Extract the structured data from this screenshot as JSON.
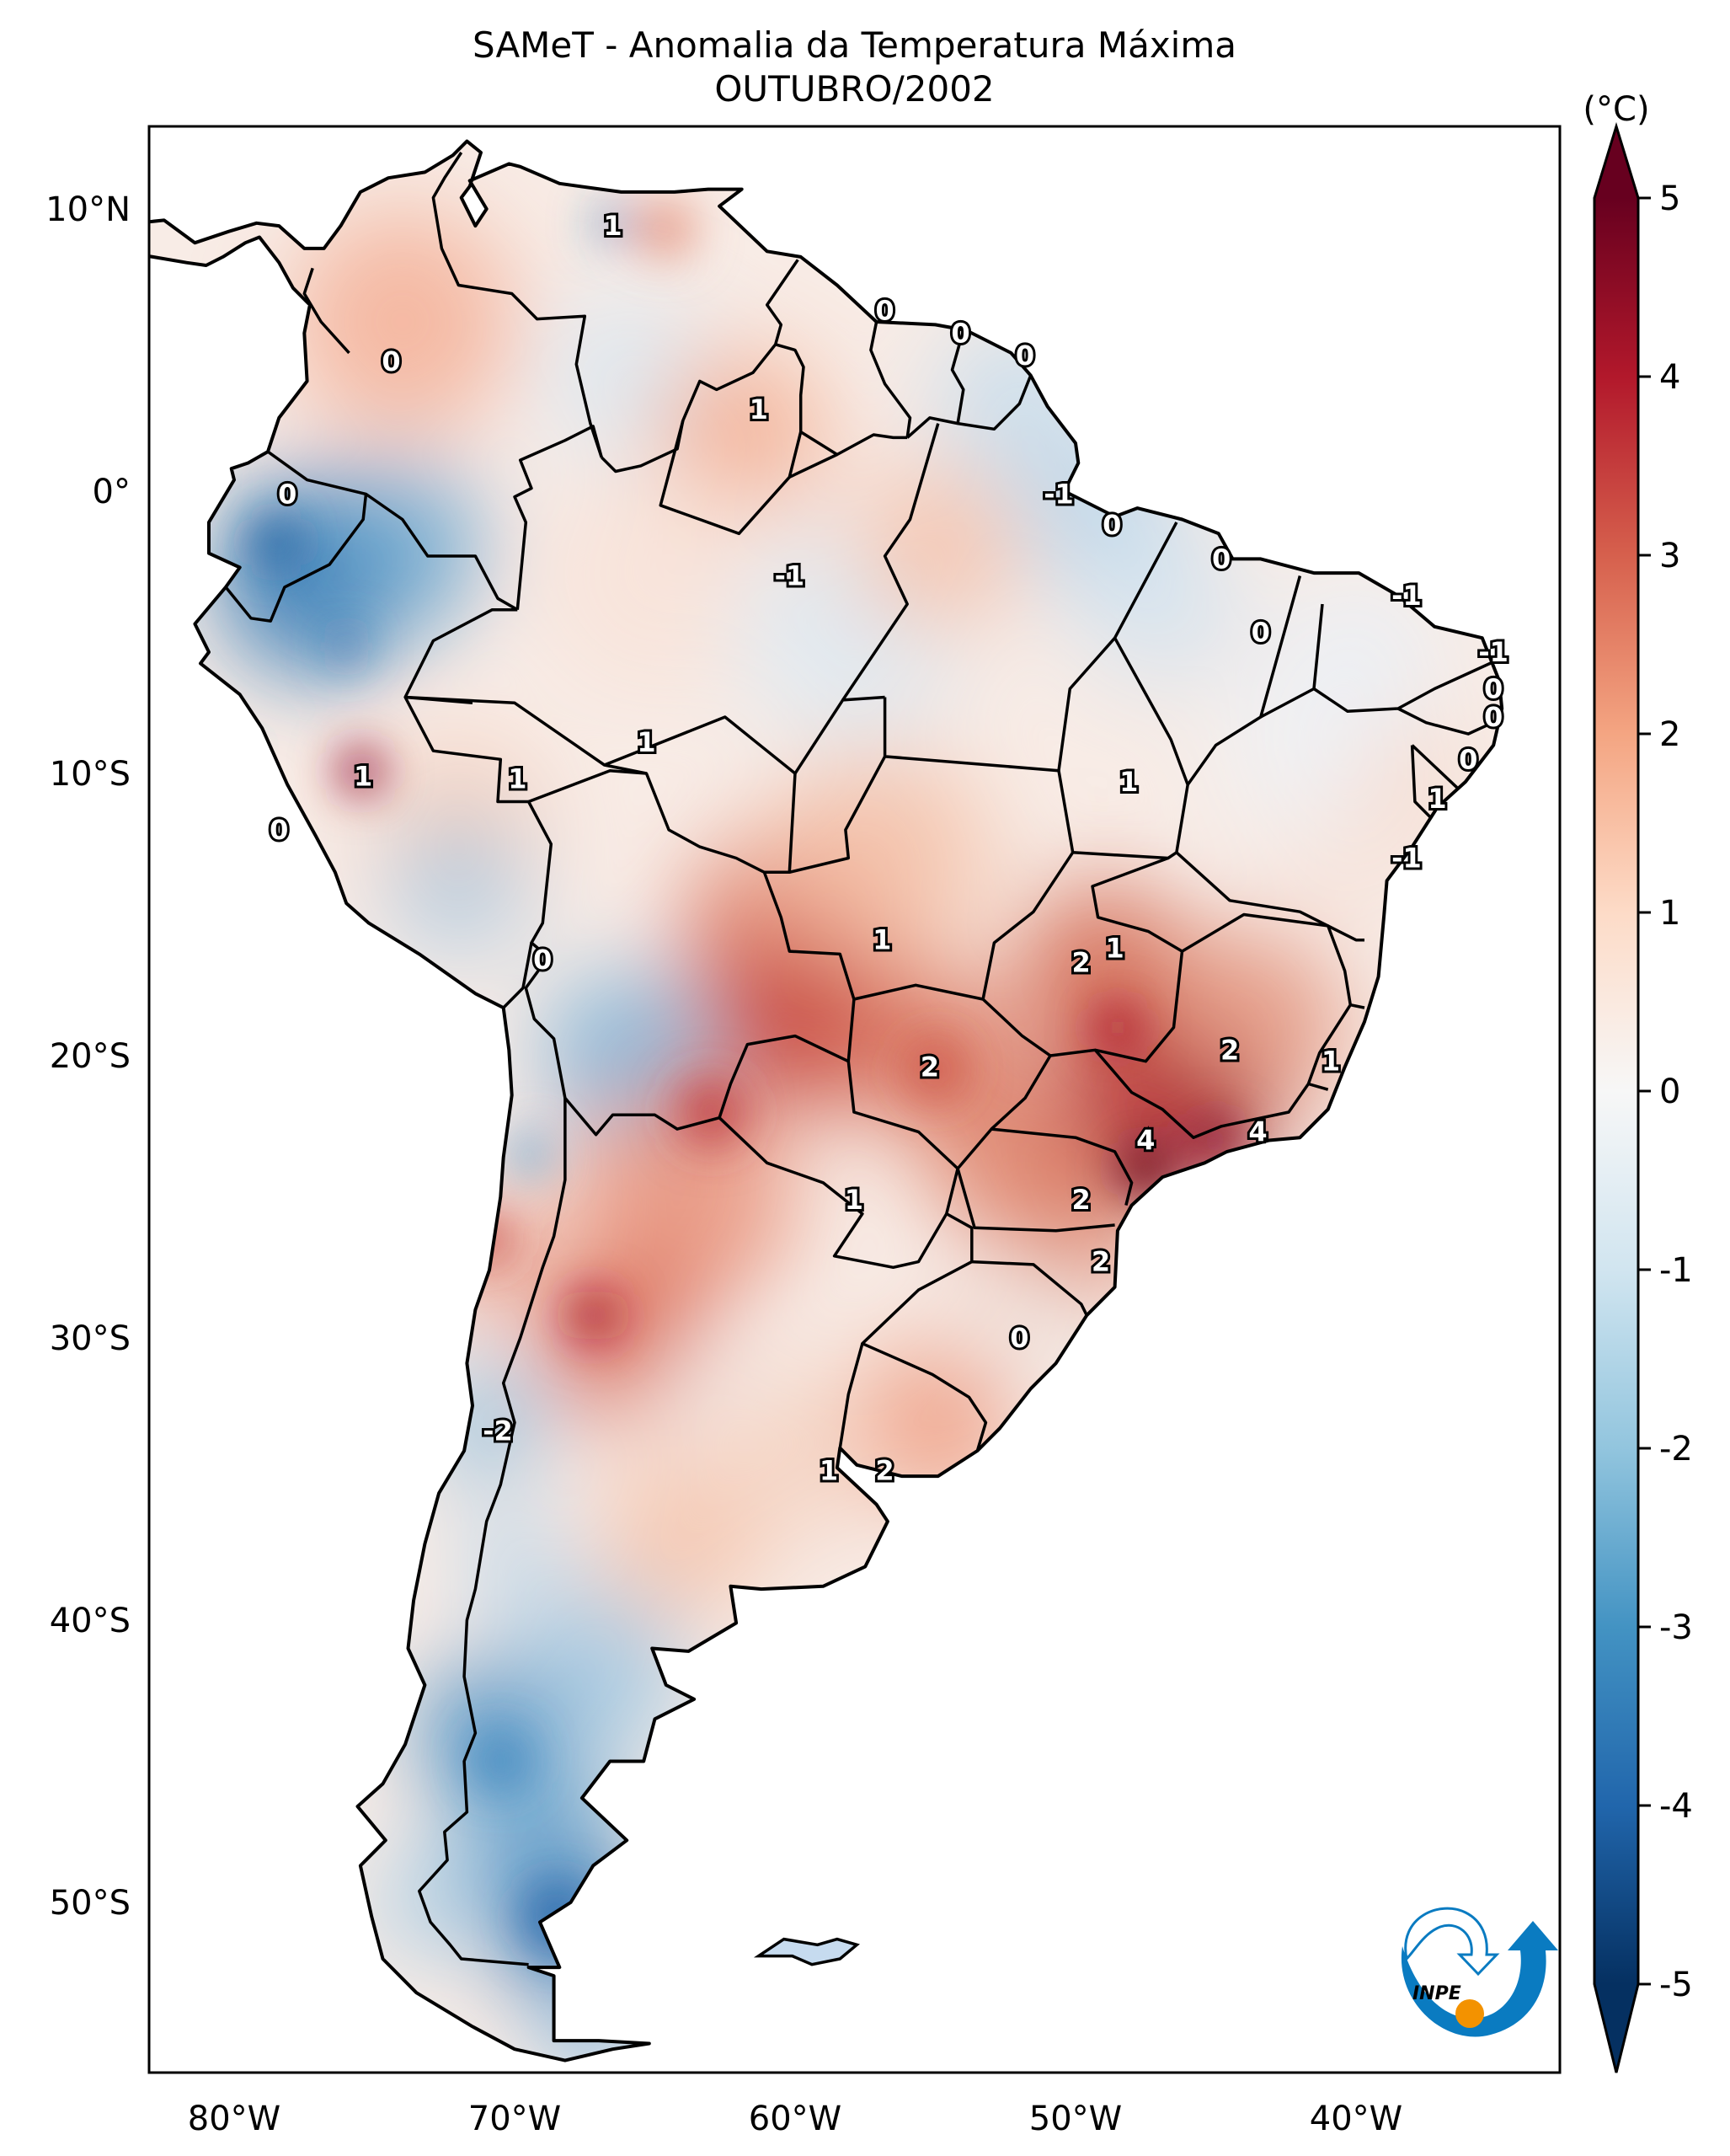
{
  "title": {
    "line1": "SAMeT - Anomalia da Temperatura Máxima",
    "line2": "OUTUBRO/2002"
  },
  "chart_data": {
    "type": "heatmap",
    "subtype": "geographic map (filled contour) of South America",
    "title": "SAMeT - Anomalia da Temperatura Máxima",
    "subtitle": "OUTUBRO/2002",
    "variable": "Maximum temperature anomaly",
    "units_label": "(°C)",
    "xlim": [
      -83,
      -32.7
    ],
    "ylim": [
      -56,
      12.9
    ],
    "x_ticks": [
      {
        "value": -80,
        "label": "80°W"
      },
      {
        "value": -70,
        "label": "70°W"
      },
      {
        "value": -60,
        "label": "60°W"
      },
      {
        "value": -50,
        "label": "50°W"
      },
      {
        "value": -40,
        "label": "40°W"
      }
    ],
    "y_ticks": [
      {
        "value": 10,
        "label": "10°N"
      },
      {
        "value": 0,
        "label": "0°"
      },
      {
        "value": -10,
        "label": "10°S"
      },
      {
        "value": -20,
        "label": "20°S"
      },
      {
        "value": -30,
        "label": "30°S"
      },
      {
        "value": -40,
        "label": "40°S"
      },
      {
        "value": -50,
        "label": "50°S"
      }
    ],
    "colorbar": {
      "label": "(°C)",
      "range": [
        -5,
        5
      ],
      "extend": "both",
      "ticks": [
        "5",
        "4",
        "3",
        "2",
        "1",
        "0",
        "-1",
        "-2",
        "-3",
        "-4",
        "-5"
      ],
      "colormap": "RdBu_r",
      "colors": [
        "#053061",
        "#2166ac",
        "#4393c3",
        "#92c5de",
        "#d1e5f0",
        "#f7f7f7",
        "#fddbc7",
        "#f4a582",
        "#d6604d",
        "#b2182b",
        "#67001f"
      ]
    },
    "contour_labels": [
      {
        "text": "1",
        "lon": -66.5,
        "lat": 9.4
      },
      {
        "text": "0",
        "lon": -74.4,
        "lat": 4.6
      },
      {
        "text": "0",
        "lon": -56.8,
        "lat": 6.4
      },
      {
        "text": "0",
        "lon": -54.1,
        "lat": 5.6
      },
      {
        "text": "0",
        "lon": -51.8,
        "lat": 4.8
      },
      {
        "text": "1",
        "lon": -61.3,
        "lat": 2.9
      },
      {
        "text": "0",
        "lon": -78.1,
        "lat": -0.1
      },
      {
        "text": "-1",
        "lon": -50.6,
        "lat": -0.1
      },
      {
        "text": "0",
        "lon": -48.7,
        "lat": -1.2
      },
      {
        "text": "-1",
        "lon": -60.2,
        "lat": -3.0
      },
      {
        "text": "0",
        "lon": -44.8,
        "lat": -2.4
      },
      {
        "text": "-1",
        "lon": -38.2,
        "lat": -3.7
      },
      {
        "text": "0",
        "lon": -43.4,
        "lat": -5.0
      },
      {
        "text": "-1",
        "lon": -35.1,
        "lat": -5.7
      },
      {
        "text": "0",
        "lon": -35.1,
        "lat": -7.0
      },
      {
        "text": "0",
        "lon": -35.1,
        "lat": -8.0
      },
      {
        "text": "0",
        "lon": -36.0,
        "lat": -9.5
      },
      {
        "text": "1",
        "lon": -75.4,
        "lat": -10.1
      },
      {
        "text": "1",
        "lon": -69.9,
        "lat": -10.2
      },
      {
        "text": "1",
        "lon": -65.3,
        "lat": -8.9
      },
      {
        "text": "1",
        "lon": -48.1,
        "lat": -10.3
      },
      {
        "text": "1",
        "lon": -37.1,
        "lat": -10.9
      },
      {
        "text": "0",
        "lon": -78.4,
        "lat": -12.0
      },
      {
        "text": "-1",
        "lon": -38.2,
        "lat": -13.0
      },
      {
        "text": "1",
        "lon": -56.9,
        "lat": -15.9
      },
      {
        "text": "0",
        "lon": -69.0,
        "lat": -16.6
      },
      {
        "text": "1",
        "lon": -48.6,
        "lat": -16.2
      },
      {
        "text": "2",
        "lon": -49.8,
        "lat": -16.7
      },
      {
        "text": "2",
        "lon": -55.2,
        "lat": -20.4
      },
      {
        "text": "2",
        "lon": -44.5,
        "lat": -19.8
      },
      {
        "text": "1",
        "lon": -40.9,
        "lat": -20.2
      },
      {
        "text": "4",
        "lon": -47.5,
        "lat": -23.0
      },
      {
        "text": "4",
        "lon": -43.5,
        "lat": -22.7
      },
      {
        "text": "1",
        "lon": -57.9,
        "lat": -25.1
      },
      {
        "text": "2",
        "lon": -49.8,
        "lat": -25.1
      },
      {
        "text": "2",
        "lon": -49.1,
        "lat": -27.3
      },
      {
        "text": "0",
        "lon": -52.0,
        "lat": -30.0
      },
      {
        "text": "-2",
        "lon": -70.6,
        "lat": -33.3
      },
      {
        "text": "1",
        "lon": -58.8,
        "lat": -34.7
      },
      {
        "text": "2",
        "lon": -56.8,
        "lat": -34.7
      }
    ]
  },
  "logo": {
    "name": "INPE",
    "text": "INPE",
    "colors": {
      "swirl": "#0a7bc1",
      "dot": "#f39200",
      "text": "#000000"
    }
  }
}
